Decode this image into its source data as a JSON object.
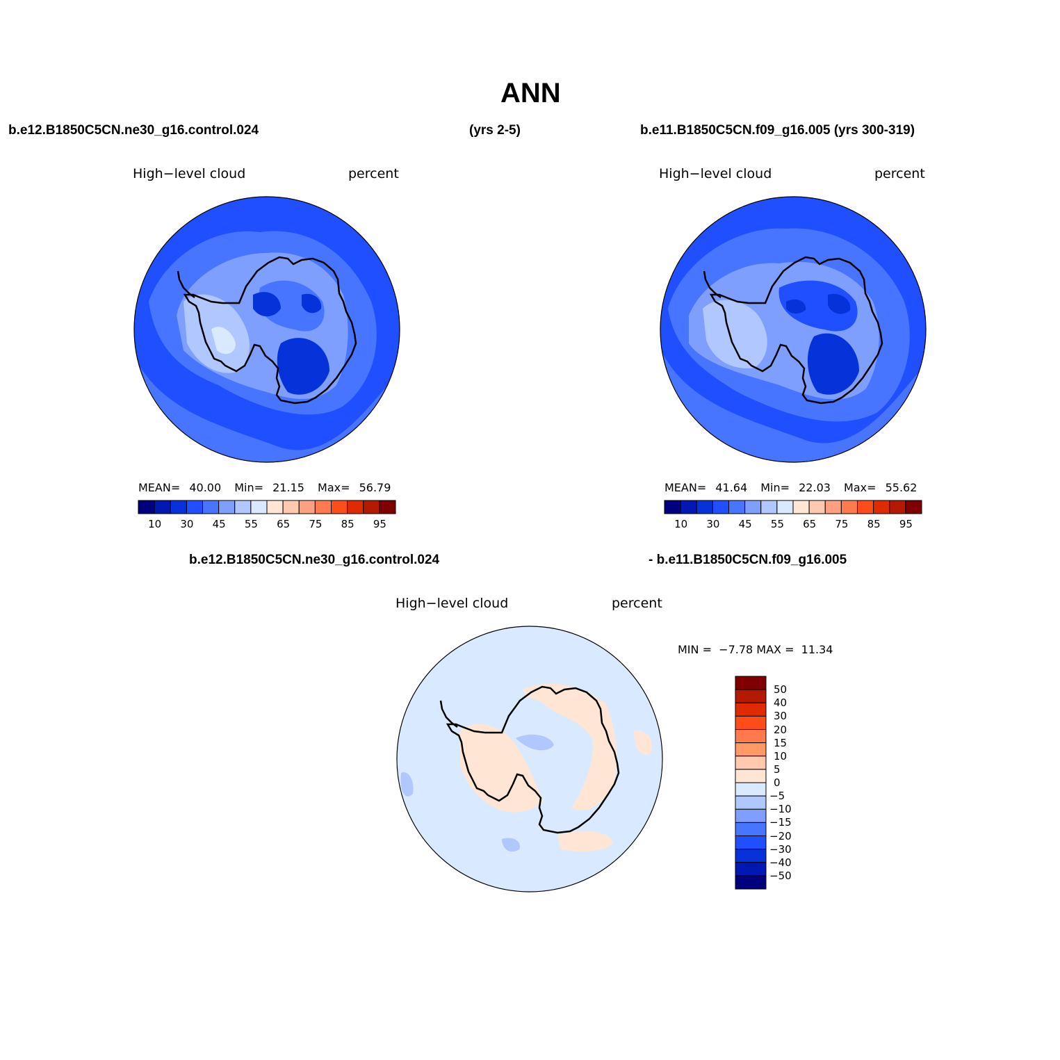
{
  "title": "ANN",
  "panels": [
    {
      "case_label": "b.e12.B1850C5CN.ne30_g16.control.024",
      "years_label": "(yrs 2-5)",
      "variable": "High−level cloud",
      "units": "percent",
      "mean_label": "MEAN=",
      "mean": "40.00",
      "min_label": "Min=",
      "min": "21.15",
      "max_label": "Max=",
      "max": "56.79"
    },
    {
      "case_label": "b.e11.B1850C5CN.f09_g16.005 (yrs 300-319)",
      "variable": "High−level cloud",
      "units": "percent",
      "mean_label": "MEAN=",
      "mean": "41.64",
      "min_label": "Min=",
      "min": "22.03",
      "max_label": "Max=",
      "max": "55.62"
    }
  ],
  "diff": {
    "case_a": "b.e12.B1850C5CN.ne30_g16.control.024",
    "case_b": "- b.e11.B1850C5CN.f09_g16.005",
    "variable": "High−level cloud",
    "units": "percent",
    "minmax_text": "MIN =  −7.78 MAX =  11.34"
  },
  "colorbar_top": {
    "colors": [
      "#00007f",
      "#0019b2",
      "#0633d9",
      "#1f4fff",
      "#4775ff",
      "#7f9fff",
      "#b0c8ff",
      "#d9e9ff",
      "#ffe6d4",
      "#ffc9b0",
      "#ffa080",
      "#ff7a4d",
      "#ff4d1a",
      "#e02a00",
      "#b31a00",
      "#800000"
    ],
    "labels": [
      "10",
      "30",
      "45",
      "55",
      "65",
      "75",
      "85",
      "95"
    ]
  },
  "colorbar_diff": {
    "colors_top_to_bottom": [
      "#800000",
      "#b31a00",
      "#e02a00",
      "#ff4d1a",
      "#ff7a4d",
      "#ff9966",
      "#ffc9b0",
      "#ffe6d4",
      "#d9e9ff",
      "#b0c8ff",
      "#7f9fff",
      "#4775ff",
      "#1f4fff",
      "#0633d9",
      "#0019b2",
      "#00007f"
    ],
    "labels": [
      "50",
      "40",
      "30",
      "20",
      "15",
      "10",
      "5",
      "0",
      "−5",
      "−10",
      "−15",
      "−20",
      "−30",
      "−40",
      "−50"
    ]
  },
  "colors": {
    "ocean_base": "#1f4fff",
    "ocean_mid": "#4775ff",
    "light_blue": "#7f9fff",
    "pale_blue": "#b0c8ff",
    "very_pale": "#d9e9ff",
    "dark_blue": "#0633d9",
    "diff_base": "#d9e9ff",
    "diff_pos": "#ffe6d4"
  }
}
